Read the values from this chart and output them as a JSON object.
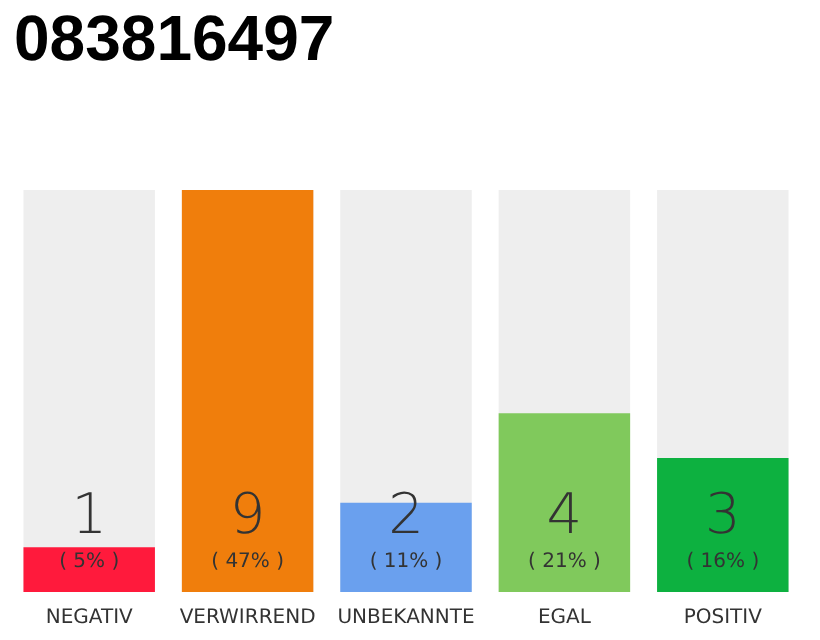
{
  "chart_data": {
    "type": "bar",
    "title": "083816497",
    "categories": [
      "NEGATIV",
      "VERWIRREND",
      "UNBEKANNTE",
      "EGAL",
      "POSITIV"
    ],
    "values": [
      1,
      9,
      2,
      4,
      3
    ],
    "colors": [
      "#ff1a3c",
      "#f07e0c",
      "#6aa0ee",
      "#80c95c",
      "#0db140"
    ],
    "value_labels": [
      "1\n( 5% )",
      "9\n( 47% )",
      "2\n( 11% )",
      "4\n( 21% )",
      "3\n( 16% )"
    ],
    "ylim": [
      0,
      9
    ],
    "tick_labels": "x"
  }
}
